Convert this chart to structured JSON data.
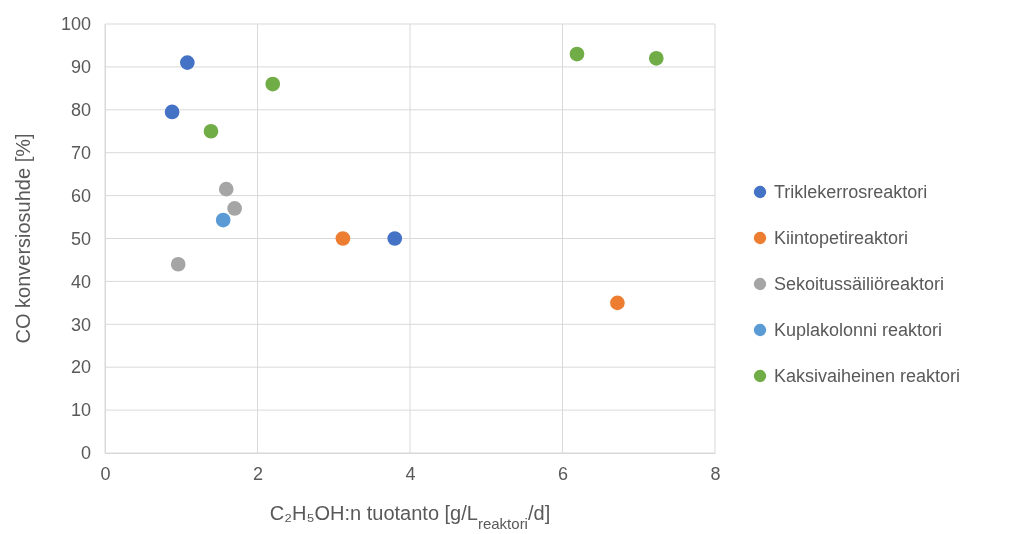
{
  "chart_data": {
    "type": "scatter",
    "xlabel": "C₂H₅OH:n tuotanto [g/L$_{reaktori}$/d]",
    "ylabel": "CO konversiosuhde [%]",
    "xlim": [
      0,
      8
    ],
    "xticks": [
      0,
      2,
      4,
      6,
      8
    ],
    "ylim": [
      0,
      100
    ],
    "yticks": [
      0,
      10,
      20,
      30,
      40,
      50,
      60,
      70,
      80,
      90,
      100
    ],
    "grid": true,
    "legend": "right",
    "marker": "circle",
    "series": [
      {
        "name": "Triklekerrosreaktori",
        "color": "#4472c4",
        "x": [
          1.08,
          0.88,
          3.8
        ],
        "values": [
          91,
          79.5,
          50
        ]
      },
      {
        "name": "Kiintopetireaktori",
        "color": "#ed7d31",
        "x": [
          3.12,
          6.72
        ],
        "values": [
          50,
          35
        ]
      },
      {
        "name": "Sekoitussäiliöreaktori",
        "color": "#a5a5a5",
        "x": [
          1.59,
          1.7,
          0.96
        ],
        "values": [
          61.5,
          57,
          44
        ]
      },
      {
        "name": "Kuplakolonni reaktori",
        "color": "#5b9bd5",
        "x": [
          1.55
        ],
        "values": [
          54.3
        ]
      },
      {
        "name": "Kaksivaiheinen reaktori",
        "color": "#70ad47",
        "x": [
          2.2,
          1.39,
          6.19,
          7.23
        ],
        "values": [
          86,
          75,
          93,
          92
        ]
      }
    ]
  }
}
